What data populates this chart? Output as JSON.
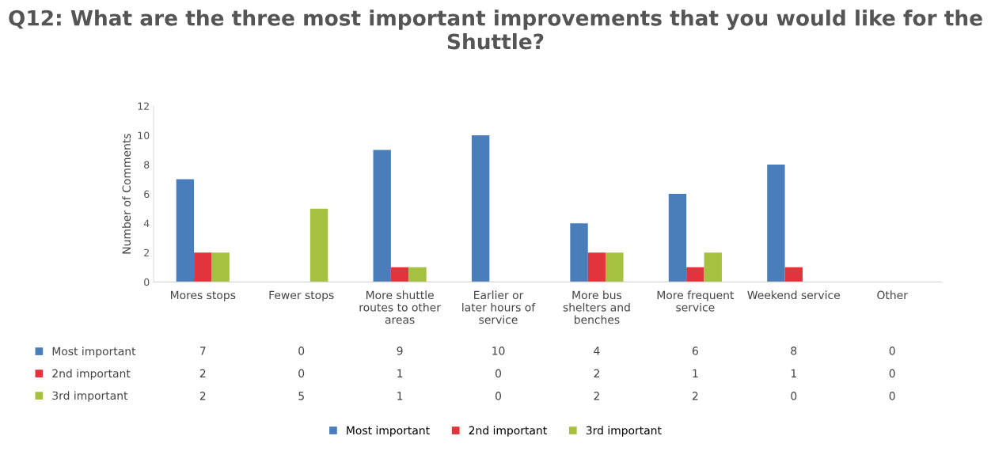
{
  "chart_data": {
    "type": "bar",
    "title": "Q12: What are the three most important improvements that you would like for the Shuttle?",
    "ylabel": "Number of Comments",
    "categories": [
      "Mores stops",
      "Fewer stops",
      "More shuttle routes to other areas",
      "Earlier or later hours of service",
      "More bus shelters and benches",
      "More frequent service",
      "Weekend service",
      "Other"
    ],
    "series": [
      {
        "name": "Most important",
        "color": "#4a7ebb",
        "values": [
          7,
          0,
          9,
          10,
          4,
          6,
          8,
          0
        ]
      },
      {
        "name": "2nd important",
        "color": "#e2343c",
        "values": [
          2,
          0,
          1,
          0,
          2,
          1,
          1,
          0
        ]
      },
      {
        "name": "3rd important",
        "color": "#a5c13f",
        "values": [
          2,
          5,
          1,
          0,
          2,
          2,
          0,
          0
        ]
      }
    ],
    "ylim": [
      0,
      12
    ],
    "yticks": [
      0,
      2,
      4,
      6,
      8,
      10,
      12
    ],
    "grid": false,
    "legend": "bottom",
    "data_labels": true
  }
}
